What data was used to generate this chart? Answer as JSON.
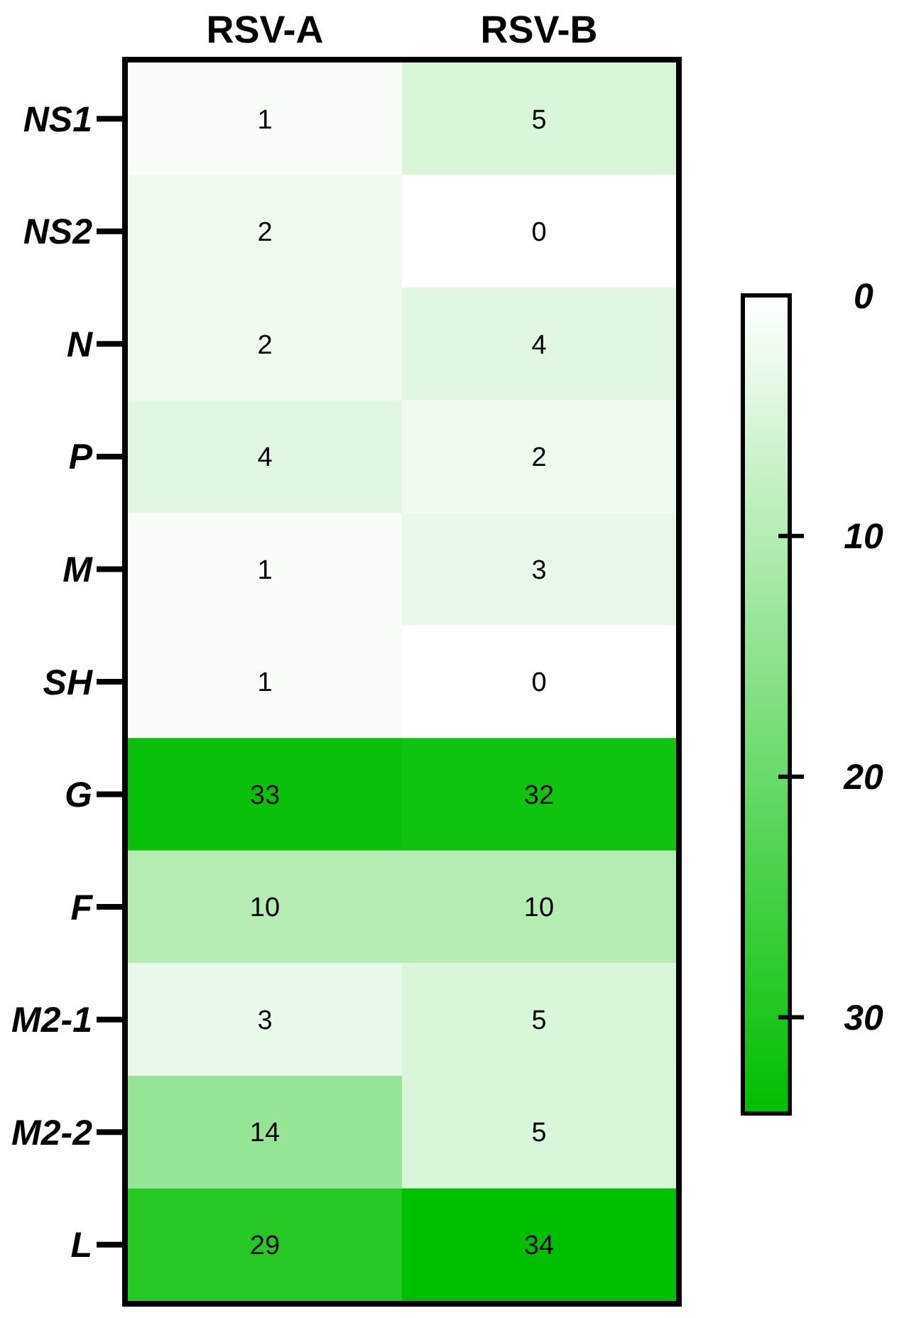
{
  "chart_data": {
    "type": "heatmap",
    "categories": [
      "RSV-A",
      "RSV-B"
    ],
    "y_categories": [
      "NS1",
      "NS2",
      "N",
      "P",
      "M",
      "SH",
      "G",
      "F",
      "M2-1",
      "M2-2",
      "L"
    ],
    "cells": [
      [
        1,
        5
      ],
      [
        2,
        0
      ],
      [
        2,
        4
      ],
      [
        4,
        2
      ],
      [
        1,
        3
      ],
      [
        1,
        0
      ],
      [
        33,
        32
      ],
      [
        10,
        10
      ],
      [
        3,
        5
      ],
      [
        14,
        5
      ],
      [
        29,
        34
      ]
    ],
    "data_labels": true,
    "clim": [
      0,
      34
    ],
    "cticks": [
      0,
      10,
      20,
      30
    ]
  }
}
